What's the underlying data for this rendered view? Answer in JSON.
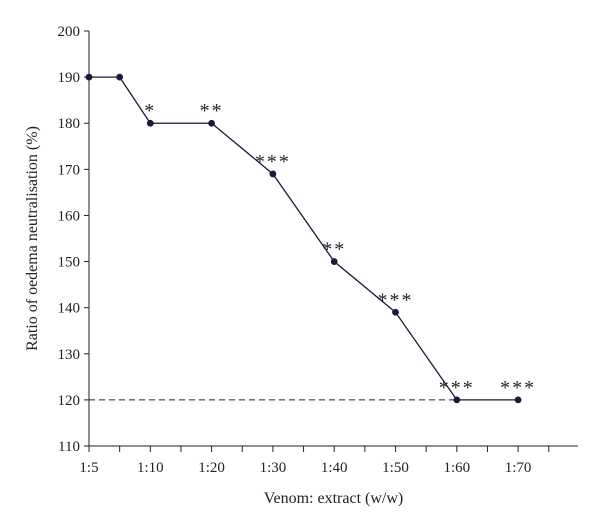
{
  "chart_data": {
    "type": "line",
    "xlabel": "Venom: extract (w/w)",
    "ylabel": "Ratio of oedema neutralisation (%)",
    "ylim": [
      110,
      200
    ],
    "yticks": [
      110,
      120,
      130,
      140,
      150,
      160,
      170,
      180,
      190,
      200
    ],
    "xlim": [
      0,
      8
    ],
    "xticks": [
      {
        "x": 0,
        "label": "1:5"
      },
      {
        "x": 1,
        "label": "1:10"
      },
      {
        "x": 2,
        "label": "1:20"
      },
      {
        "x": 3,
        "label": "1:30"
      },
      {
        "x": 4,
        "label": "1:40"
      },
      {
        "x": 5,
        "label": "1:50"
      },
      {
        "x": 6,
        "label": "1:60"
      },
      {
        "x": 7,
        "label": "1:70"
      }
    ],
    "grid": false,
    "series": [
      {
        "color": "#1a1a3a",
        "points": [
          {
            "x": 0,
            "y": 190,
            "sig": ""
          },
          {
            "x": 0.5,
            "y": 190,
            "sig": ""
          },
          {
            "x": 1,
            "y": 180,
            "sig": "*"
          },
          {
            "x": 2,
            "y": 180,
            "sig": "**"
          },
          {
            "x": 3,
            "y": 169,
            "sig": "***"
          },
          {
            "x": 4,
            "y": 150,
            "sig": "**"
          },
          {
            "x": 5,
            "y": 139,
            "sig": "***"
          },
          {
            "x": 6,
            "y": 120,
            "sig": "***"
          },
          {
            "x": 7,
            "y": 120,
            "sig": "***"
          }
        ]
      }
    ],
    "reference_line": {
      "y": 120,
      "x_from": 0,
      "x_to": 6,
      "style": "dashed"
    }
  }
}
